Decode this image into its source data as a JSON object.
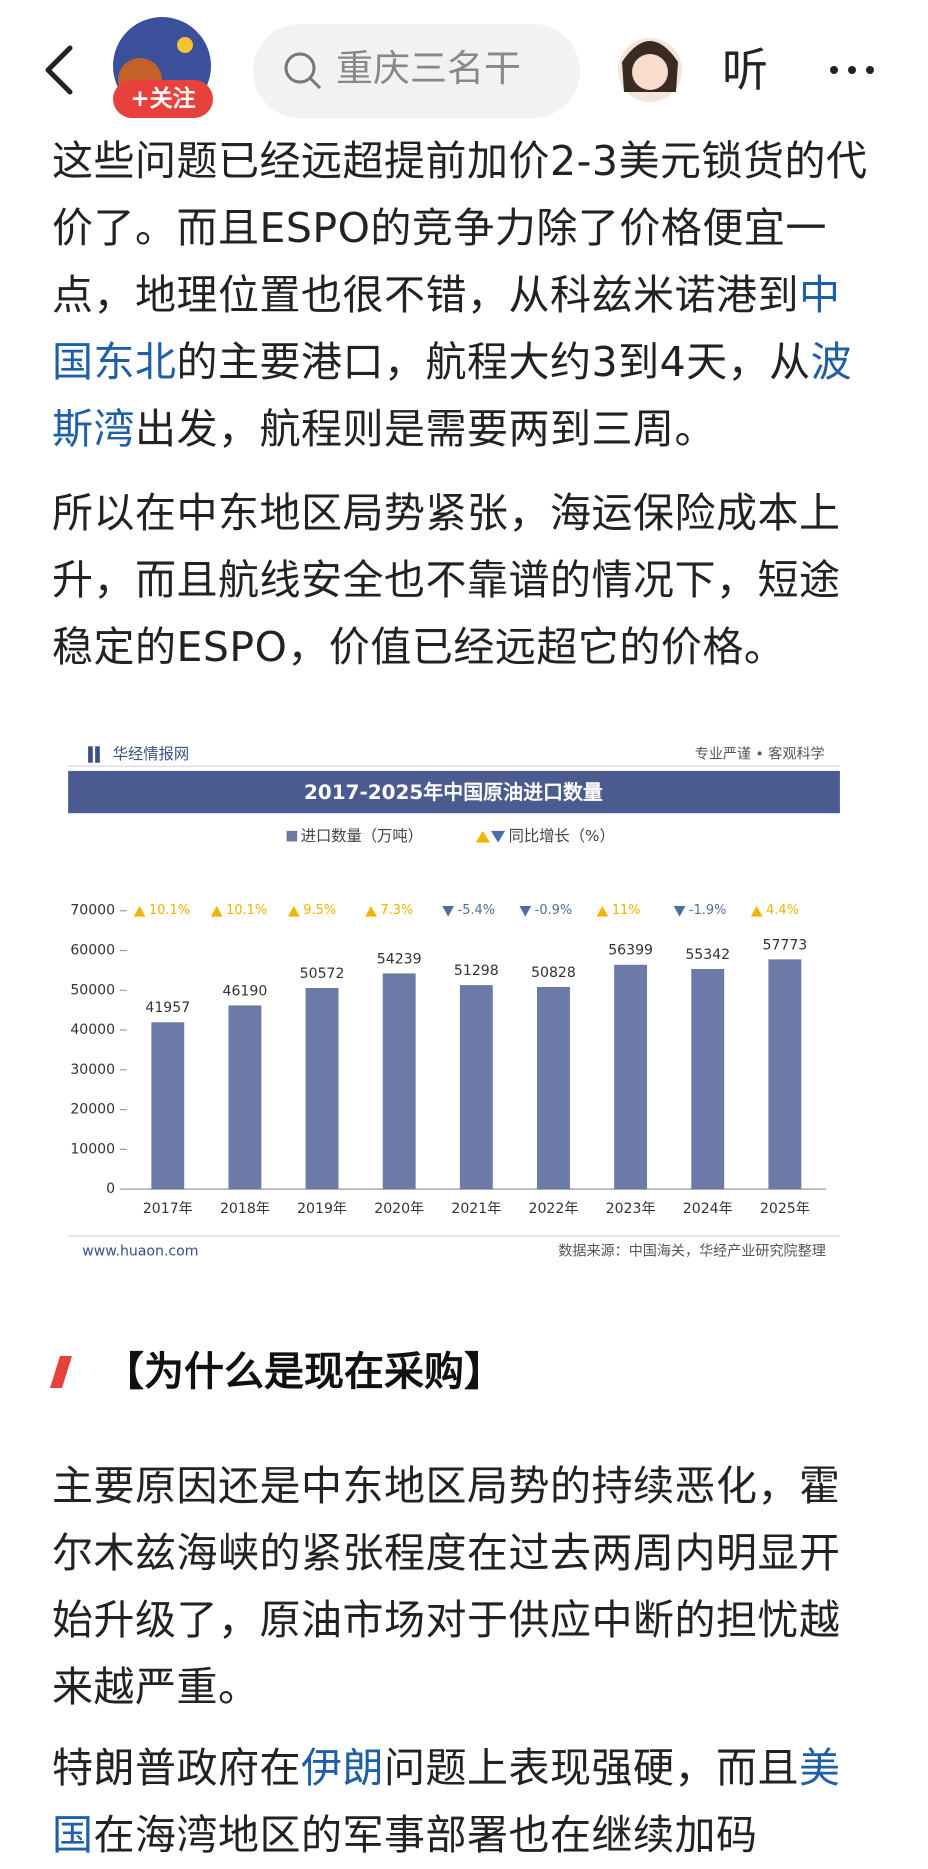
{
  "header": {
    "follow": "+关注",
    "search": "重庆三名干",
    "listen": "听"
  },
  "paragraphs": [
    {
      "segments": [
        {
          "text": "这些问题已经远超提前加价2-3美元锁货的代价了。而且ESPO的竞争力除了价格便宜一点，地理位置也很不错，从科兹米诺港到",
          "link": false
        },
        {
          "text": "中国东北",
          "link": true
        },
        {
          "text": "的主要港口，航程大约3到4天，从",
          "link": false
        },
        {
          "text": "波斯湾",
          "link": true
        },
        {
          "text": "出发，航程则是需要两到三周。",
          "link": false
        }
      ]
    },
    {
      "segments": [
        {
          "text": "所以在中东地区局势紧张，海运保险成本上升，而且航线安全也不靠谱的情况下，短途稳定的ESPO，价值已经远超它的价格。",
          "link": false
        }
      ]
    }
  ],
  "chart_data": {
    "type": "bar",
    "brand": "华经情报网",
    "slogan": "专业严谨 • 客观科学",
    "title": "2017-2025年中国原油进口数量",
    "series_name": "进口数量（万吨）",
    "categories": [
      "2017年",
      "2018年",
      "2019年",
      "2020年",
      "2021年",
      "2022年",
      "2023年",
      "2024年",
      "2025年"
    ],
    "values": [
      41957,
      46190,
      50572,
      54239,
      51298,
      50828,
      56399,
      55342,
      57773
    ],
    "color": "#6b7aa6",
    "growth": {
      "name": "同比增长（%）",
      "values": [
        10.1,
        10.1,
        9.5,
        7.3,
        -5.4,
        -0.9,
        11,
        -1.9,
        4.4
      ],
      "value_labels": [
        "10.1%",
        "10.1%",
        "9.5%",
        "7.3%",
        "-5.4%",
        "-0.9%",
        "11%",
        "-1.9%",
        "4.4%"
      ],
      "up_color": "#f0b400",
      "down_color": "#4a6fa5"
    },
    "ylim": [
      0,
      70000
    ],
    "yticks": [
      0,
      10000,
      20000,
      30000,
      40000,
      50000,
      60000,
      70000
    ],
    "website": "www.huaon.com",
    "source": "数据来源：中国海关，华经产业研究院整理"
  },
  "section_heading": "【为什么是现在采购】",
  "paragraphs_2": [
    {
      "segments": [
        {
          "text": "主要原因还是中东地区局势的持续恶化，霍尔木兹海峡的紧张程度在过去两周内明显开始升级了，原油市场对于供应中断的担忧越来越严重。",
          "link": false
        }
      ]
    },
    {
      "segments": [
        {
          "text": "特朗普政府在",
          "link": false
        },
        {
          "text": "伊朗",
          "link": true
        },
        {
          "text": "问题上表现强硬，而且",
          "link": false
        },
        {
          "text": "美国",
          "link": true
        },
        {
          "text": "在海湾地区的军事部署也在继续加码",
          "link": false
        }
      ]
    }
  ]
}
